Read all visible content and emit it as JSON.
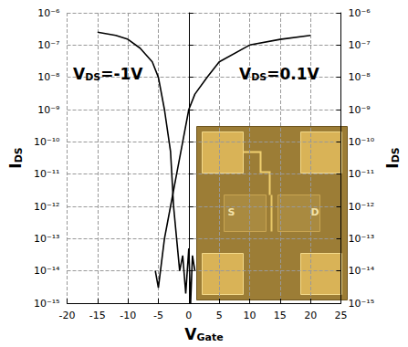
{
  "chart_data": {
    "type": "line",
    "xlabel": "VGate",
    "ylabel": "IDS",
    "y2label": "IDS",
    "log": "y",
    "grid": true,
    "xlim": [
      -20,
      25
    ],
    "xticks": [
      -20,
      -15,
      -10,
      -5,
      0,
      5,
      10,
      15,
      20,
      25
    ],
    "ylim": [
      1e-15,
      1e-06
    ],
    "yticks": [
      {
        "value": 1e-15,
        "label": "10⁻¹⁵"
      },
      {
        "value": 1e-14,
        "label": "10⁻¹⁴"
      },
      {
        "value": 1e-13,
        "label": "10⁻¹³"
      },
      {
        "value": 1e-12,
        "label": "10⁻¹²"
      },
      {
        "value": 1e-11,
        "label": "10⁻¹¹"
      },
      {
        "value": 1e-10,
        "label": "10⁻¹⁰"
      },
      {
        "value": 1e-09,
        "label": "10⁻⁹"
      },
      {
        "value": 1e-08,
        "label": "10⁻⁸"
      },
      {
        "value": 1e-07,
        "label": "10⁻⁷"
      },
      {
        "value": 1e-06,
        "label": "10⁻⁶"
      }
    ],
    "y2lim": [
      1e-15,
      1e-06
    ],
    "y2ticks": [
      {
        "value": 1e-15,
        "label": "10⁻¹⁵"
      },
      {
        "value": 1e-14,
        "label": "10⁻¹⁴"
      },
      {
        "value": 1e-13,
        "label": "10⁻¹³"
      },
      {
        "value": 1e-12,
        "label": "10⁻¹²"
      },
      {
        "value": 1e-11,
        "label": "10⁻¹¹"
      },
      {
        "value": 1e-10,
        "label": "10⁻¹⁰"
      },
      {
        "value": 1e-09,
        "label": "10⁻⁹"
      },
      {
        "value": 1e-08,
        "label": "10⁻⁸"
      },
      {
        "value": 1e-07,
        "label": "10⁻⁷"
      },
      {
        "value": 1e-06,
        "label": "10⁻⁶"
      }
    ],
    "series": [
      {
        "name": "VDS=-1V",
        "color": "#000000",
        "x": [
          -15,
          -12,
          -10,
          -8,
          -6,
          -5,
          -4,
          -3,
          -2.5,
          -2,
          -1.5,
          -1,
          -0.5,
          0,
          0.3,
          0.6,
          1
        ],
        "values": [
          2.5e-07,
          2e-07,
          1.5e-07,
          8e-08,
          3e-08,
          1e-08,
          1e-09,
          5e-11,
          1e-12,
          1e-13,
          1e-14,
          3e-14,
          2e-15,
          5e-14,
          1e-15,
          3e-14,
          1e-14
        ]
      },
      {
        "name": "VDS=0.1V",
        "color": "#000000",
        "x": [
          -5.5,
          -5,
          -4,
          -3,
          -2,
          -1,
          0,
          1,
          3,
          5,
          10,
          15,
          20
        ],
        "values": [
          1e-14,
          3e-15,
          1e-13,
          1e-12,
          1e-11,
          1e-10,
          1e-09,
          3e-09,
          1e-08,
          3e-08,
          1e-07,
          1.5e-07,
          2e-07
        ]
      }
    ],
    "annotations": [
      "S",
      "D"
    ]
  }
}
